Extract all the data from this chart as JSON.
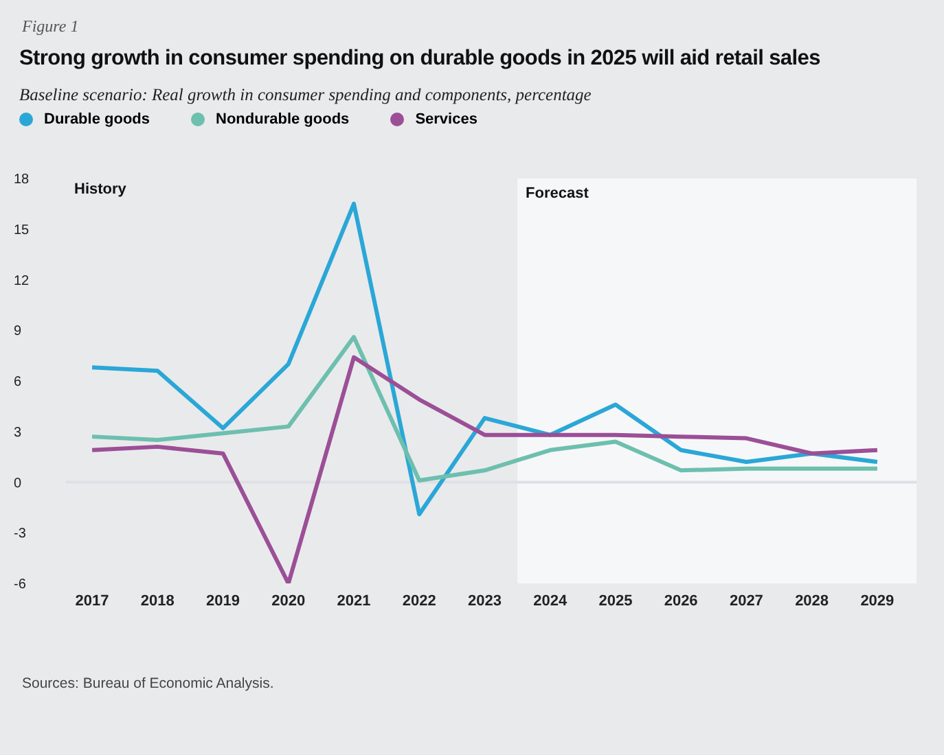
{
  "chart_data": {
    "type": "line",
    "title": "Strong growth in consumer spending on durable goods in 2025 will aid retail sales",
    "subtitle": "Baseline scenario: Real growth in consumer spending and components, percentage",
    "annotations": [
      "Figure 1",
      "History",
      "Sources: Bureau of Economic Analysis."
    ],
    "x": [
      2017,
      2018,
      2019,
      2020,
      2021,
      2022,
      2023,
      2024,
      2025,
      2026,
      2027,
      2028,
      2029
    ],
    "series": [
      {
        "name": "Durable goods",
        "color": "#2aa7d6",
        "values": [
          6.8,
          6.6,
          3.2,
          7.0,
          16.5,
          -1.9,
          3.8,
          2.8,
          4.6,
          1.9,
          1.2,
          1.7,
          1.2
        ]
      },
      {
        "name": "Nondurable goods",
        "color": "#6dbfae",
        "values": [
          2.7,
          2.5,
          2.9,
          3.3,
          8.6,
          0.1,
          0.7,
          1.9,
          2.4,
          0.7,
          0.8,
          0.8,
          0.8
        ]
      },
      {
        "name": "Services",
        "color": "#9b4f96",
        "values": [
          1.9,
          2.1,
          1.7,
          -6.0,
          7.4,
          4.9,
          2.8,
          2.8,
          2.8,
          2.7,
          2.6,
          1.7,
          1.9
        ]
      }
    ],
    "xlim": [
      2016.6,
      2029.6
    ],
    "xticks": [
      2017,
      2018,
      2019,
      2020,
      2021,
      2022,
      2023,
      2024,
      2025,
      2026,
      2027,
      2028,
      2029
    ],
    "ylim": [
      -6,
      18
    ],
    "yticks": [
      -6,
      -3,
      0,
      3,
      6,
      9,
      12,
      15,
      18
    ],
    "bands": [
      {
        "axis": "x",
        "from": 2023.5,
        "to": 2029.6,
        "label": "Forecast",
        "color": "#f6f7f9"
      }
    ],
    "ref_lines": [
      {
        "axis": "y",
        "value": 0,
        "label": null,
        "color": "#dde0e4"
      }
    ],
    "legend": "top left",
    "grid": false,
    "marker": "none",
    "line_style": "solid"
  }
}
